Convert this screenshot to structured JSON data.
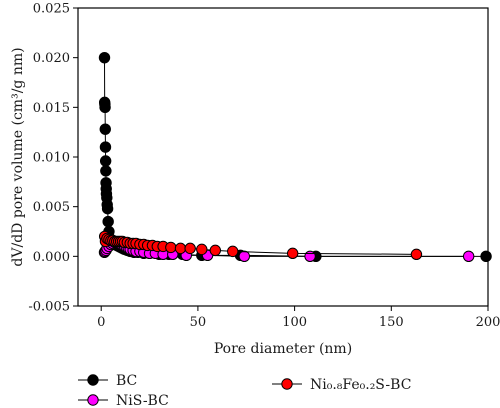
{
  "chart_data": {
    "type": "scatter",
    "title": "",
    "xlabel": "Pore diameter (nm)",
    "ylabel": "dV/dD pore volume (cm³/g nm)",
    "xlim": [
      -12,
      200
    ],
    "ylim": [
      -0.005,
      0.025
    ],
    "xticks": [
      0,
      50,
      100,
      150,
      200
    ],
    "yticks": [
      -0.005,
      0.0,
      0.005,
      0.01,
      0.015,
      0.02,
      0.025
    ],
    "ytick_labels": [
      "-0.005",
      "0.000",
      "0.005",
      "0.010",
      "0.015",
      "0.020",
      "0.025"
    ],
    "grid": false,
    "legend_position": "bottom",
    "series": [
      {
        "name": "BC",
        "color": "#000000",
        "x": [
          1.7,
          1.8,
          1.9,
          2.0,
          2.1,
          2.2,
          2.3,
          2.4,
          2.5,
          2.6,
          2.7,
          2.9,
          3.1,
          3.3,
          3.6,
          4.0,
          4.5,
          5.0,
          6.0,
          7.0,
          8.0,
          9.0,
          10.0,
          11.0,
          12.0,
          13.5,
          15.0,
          17.0,
          19.0,
          22.0,
          25.0,
          30.0,
          35.0,
          42.0,
          52.0,
          72.0,
          111.0,
          199.0
        ],
        "y": [
          0.02,
          0.0155,
          0.0153,
          0.015,
          0.0128,
          0.011,
          0.0096,
          0.0086,
          0.0074,
          0.0068,
          0.0063,
          0.0059,
          0.0052,
          0.0048,
          0.0035,
          0.0025,
          0.0018,
          0.0015,
          0.0013,
          0.0012,
          0.0011,
          0.001,
          0.0009,
          0.0008,
          0.0007,
          0.0006,
          0.0005,
          0.0004,
          0.0004,
          0.0003,
          0.0003,
          0.0002,
          0.0002,
          0.0002,
          0.0001,
          0.0001,
          0.0,
          0.0
        ]
      },
      {
        "name": "NiS-BC",
        "color": "#ff00ff",
        "x": [
          1.7,
          2.0,
          2.5,
          3.0,
          4.0,
          5.0,
          6.0,
          7.0,
          8.0,
          9.0,
          10.0,
          11.0,
          12.0,
          13.0,
          14.0,
          15.0,
          16.5,
          18.0,
          20.0,
          22.0,
          25.0,
          28.0,
          32.0,
          37.0,
          44.0,
          55.0,
          74.0,
          108.0,
          190.0
        ],
        "y": [
          0.0004,
          0.0005,
          0.0006,
          0.0008,
          0.001,
          0.0012,
          0.0013,
          0.0014,
          0.0014,
          0.0013,
          0.0012,
          0.0011,
          0.001,
          0.0009,
          0.0008,
          0.0007,
          0.0006,
          0.0005,
          0.0005,
          0.0004,
          0.0003,
          0.0003,
          0.0002,
          0.0002,
          0.0001,
          0.0001,
          0.0,
          0.0,
          0.0
        ]
      },
      {
        "name": "Ni₀.₈Fe₀.₂S-BC",
        "color": "#ff0000",
        "x": [
          1.8,
          2.2,
          3.0,
          4.0,
          5.0,
          6.0,
          7.0,
          8.0,
          9.0,
          10.0,
          11.0,
          12.0,
          13.5,
          15.0,
          16.5,
          18.0,
          20.0,
          22.0,
          24.0,
          26.5,
          29.0,
          32.0,
          36.0,
          41.0,
          46.0,
          52.0,
          59.0,
          68.0,
          99.0,
          163.0
        ],
        "y": [
          0.002,
          0.0015,
          0.0018,
          0.0017,
          0.0016,
          0.0016,
          0.0015,
          0.0015,
          0.0015,
          0.0015,
          0.0015,
          0.0014,
          0.0014,
          0.0013,
          0.0013,
          0.0013,
          0.0012,
          0.0012,
          0.0011,
          0.0011,
          0.001,
          0.001,
          0.0009,
          0.0008,
          0.0008,
          0.0007,
          0.0006,
          0.0005,
          0.0003,
          0.0002
        ]
      }
    ]
  }
}
